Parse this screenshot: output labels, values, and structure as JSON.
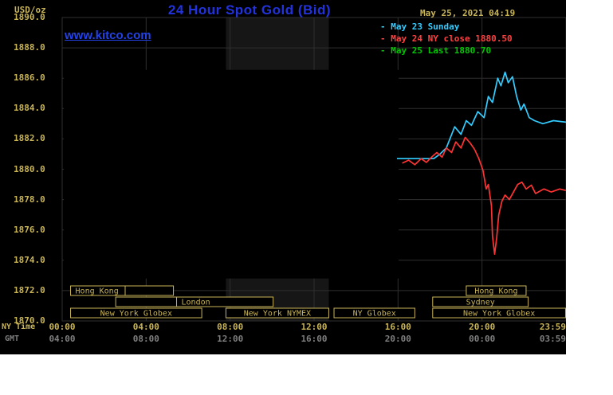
{
  "header": {
    "units_label": "USD/oz",
    "title": "24 Hour Spot Gold (Bid)",
    "datetime": "May 25, 2021 04:19",
    "watermark": "www.kitco.com"
  },
  "legend": {
    "items": [
      {
        "label": "May 23 Sunday",
        "color": "#33ccff"
      },
      {
        "label": "May 24 NY close 1880.50",
        "color": "#ff4040"
      },
      {
        "label": "May 25 Last 1880.70",
        "color": "#00c800"
      }
    ]
  },
  "axis": {
    "ny_time_label": "NY Time",
    "gmt_label": "GMT"
  },
  "sessions": [
    {
      "row": 1,
      "label": "Hong Kong",
      "start": 0.4,
      "end": 3.0,
      "align": "left"
    },
    {
      "row": 1,
      "label": "",
      "start": 3.0,
      "end": 5.3,
      "align": "center"
    },
    {
      "row": 2,
      "label": "",
      "start": 2.55,
      "end": 5.45,
      "align": "center"
    },
    {
      "row": 2,
      "label": "London",
      "start": 5.45,
      "end": 10.05,
      "align": "left"
    },
    {
      "row": 3,
      "label": "New York Globex",
      "start": 0.4,
      "end": 6.65,
      "align": "center"
    },
    {
      "row": 3,
      "label": "New York NYMEX",
      "start": 7.8,
      "end": 12.7,
      "align": "center"
    },
    {
      "row": 3,
      "label": "NY Globex",
      "start": 12.95,
      "end": 16.8,
      "align": "center"
    },
    {
      "row": 1,
      "label": "Hong Kong",
      "start": 19.25,
      "end": 22.1,
      "align": "center"
    },
    {
      "row": 2,
      "label": "Sydney",
      "start": 17.65,
      "end": 22.2,
      "align": "center"
    },
    {
      "row": 3,
      "label": "New York Globex",
      "start": 17.65,
      "end": 23.98,
      "align": "center"
    }
  ],
  "colors": {
    "khaki": "#c8b458",
    "grid": "#2f2f2f",
    "band": "#161616",
    "gmt_text": "#7f7f7f",
    "title_blue": "#2233dd",
    "watermark_blue": "#2342e8",
    "panel_bg": "#000000",
    "page_bg": "#ffffff"
  },
  "chart_data": {
    "type": "line",
    "title": "24 Hour Spot Gold (Bid)",
    "ylabel": "USD/oz",
    "xlabel": "NY Time / GMT",
    "xlim": [
      0,
      24
    ],
    "ylim": [
      1870,
      1890
    ],
    "x_grid_step": 4,
    "y_grid_step": 2,
    "x_ticks": [
      {
        "hour": 0,
        "ny": "00:00",
        "gmt": "04:00",
        "align": "center"
      },
      {
        "hour": 4,
        "ny": "04:00",
        "gmt": "08:00",
        "align": "center"
      },
      {
        "hour": 8,
        "ny": "08:00",
        "gmt": "12:00",
        "align": "center"
      },
      {
        "hour": 12,
        "ny": "12:00",
        "gmt": "16:00",
        "align": "center"
      },
      {
        "hour": 16,
        "ny": "16:00",
        "gmt": "20:00",
        "align": "center"
      },
      {
        "hour": 20,
        "ny": "20:00",
        "gmt": "00:00",
        "align": "center"
      },
      {
        "hour": 23.98,
        "ny": "23:59",
        "gmt": "03:59",
        "align": "right"
      }
    ],
    "y_ticks": [
      "1890.0",
      "1888.0",
      "1886.0",
      "1884.0",
      "1882.0",
      "1880.0",
      "1878.0",
      "1876.0",
      "1874.0",
      "1872.0",
      "1870.0"
    ],
    "shaded_bands": [
      [
        7.8,
        12.7
      ]
    ],
    "blackout_region": {
      "x": [
        0.08,
        16.03
      ],
      "y": [
        1872.8,
        1886.55
      ]
    },
    "series": [
      {
        "name": "May 23 Sunday",
        "color": "#33ccff",
        "points": [
          [
            15.95,
            1880.7
          ],
          [
            17.7,
            1880.7
          ],
          [
            18.0,
            1881.0
          ],
          [
            18.3,
            1881.4
          ],
          [
            18.7,
            1882.8
          ],
          [
            19.0,
            1882.3
          ],
          [
            19.25,
            1883.2
          ],
          [
            19.5,
            1882.9
          ],
          [
            19.8,
            1883.8
          ],
          [
            20.1,
            1883.4
          ],
          [
            20.3,
            1884.8
          ],
          [
            20.5,
            1884.4
          ],
          [
            20.75,
            1886.0
          ],
          [
            20.9,
            1885.5
          ],
          [
            21.1,
            1886.4
          ],
          [
            21.25,
            1885.7
          ],
          [
            21.45,
            1886.1
          ],
          [
            21.65,
            1884.8
          ],
          [
            21.85,
            1883.9
          ],
          [
            22.0,
            1884.3
          ],
          [
            22.25,
            1883.4
          ],
          [
            22.5,
            1883.2
          ],
          [
            22.9,
            1883.0
          ],
          [
            23.4,
            1883.2
          ],
          [
            24,
            1883.1
          ]
        ]
      },
      {
        "name": "May 24 NY close 1880.50",
        "color": "#ff3333",
        "points": [
          [
            16.2,
            1880.4
          ],
          [
            16.5,
            1880.6
          ],
          [
            16.8,
            1880.3
          ],
          [
            17.1,
            1880.7
          ],
          [
            17.35,
            1880.45
          ],
          [
            17.6,
            1880.8
          ],
          [
            17.85,
            1881.1
          ],
          [
            18.1,
            1880.8
          ],
          [
            18.3,
            1881.4
          ],
          [
            18.55,
            1881.1
          ],
          [
            18.75,
            1881.8
          ],
          [
            19.0,
            1881.4
          ],
          [
            19.2,
            1882.1
          ],
          [
            19.45,
            1881.7
          ],
          [
            19.65,
            1881.3
          ],
          [
            19.85,
            1880.7
          ],
          [
            20.05,
            1879.9
          ],
          [
            20.2,
            1878.7
          ],
          [
            20.3,
            1879.0
          ],
          [
            20.45,
            1877.6
          ],
          [
            20.5,
            1875.6
          ],
          [
            20.6,
            1874.4
          ],
          [
            20.7,
            1875.5
          ],
          [
            20.8,
            1877.0
          ],
          [
            20.95,
            1877.9
          ],
          [
            21.1,
            1878.3
          ],
          [
            21.3,
            1878.0
          ],
          [
            21.5,
            1878.5
          ],
          [
            21.7,
            1879.0
          ],
          [
            21.9,
            1879.15
          ],
          [
            22.1,
            1878.7
          ],
          [
            22.35,
            1878.95
          ],
          [
            22.55,
            1878.4
          ],
          [
            22.95,
            1878.7
          ],
          [
            23.3,
            1878.5
          ],
          [
            23.7,
            1878.7
          ],
          [
            24,
            1878.6
          ]
        ]
      },
      {
        "name": "May 25 Last 1880.70",
        "color": "#00c800",
        "points": []
      }
    ]
  }
}
